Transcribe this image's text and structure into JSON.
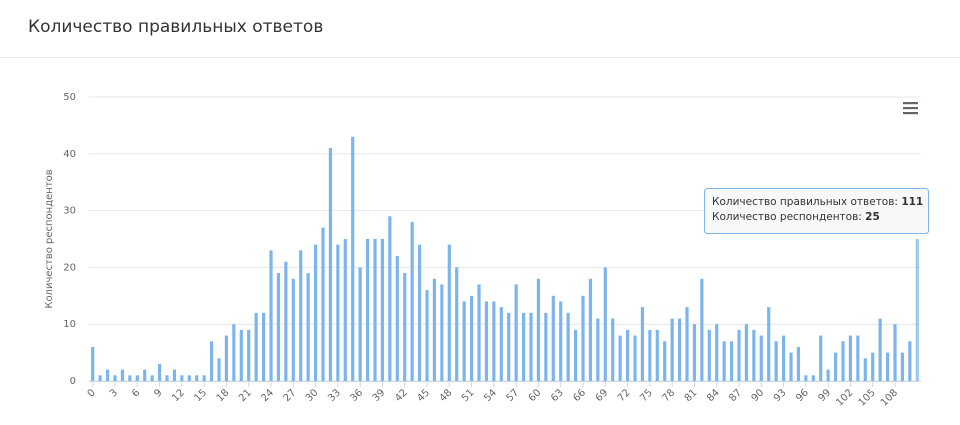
{
  "chart_data": {
    "type": "bar",
    "title": "Количество правильных ответов",
    "y_label": "Количество респондентов",
    "x": [
      0,
      1,
      2,
      3,
      4,
      5,
      6,
      7,
      8,
      9,
      10,
      11,
      12,
      13,
      14,
      15,
      16,
      17,
      18,
      19,
      20,
      21,
      22,
      23,
      24,
      25,
      26,
      27,
      28,
      29,
      30,
      31,
      32,
      33,
      34,
      35,
      36,
      37,
      38,
      39,
      40,
      41,
      42,
      43,
      44,
      45,
      46,
      47,
      48,
      49,
      50,
      51,
      52,
      53,
      54,
      55,
      56,
      57,
      58,
      59,
      60,
      61,
      62,
      63,
      64,
      65,
      66,
      67,
      68,
      69,
      70,
      71,
      72,
      73,
      74,
      75,
      76,
      77,
      78,
      79,
      80,
      81,
      82,
      83,
      84,
      85,
      86,
      87,
      88,
      89,
      90,
      91,
      92,
      93,
      94,
      95,
      96,
      97,
      98,
      99,
      100,
      101,
      102,
      103,
      104,
      105,
      106,
      107,
      108,
      109,
      110,
      111
    ],
    "values": [
      6,
      1,
      2,
      1,
      2,
      1,
      1,
      2,
      1,
      3,
      1,
      2,
      1,
      1,
      1,
      1,
      7,
      4,
      8,
      10,
      9,
      9,
      12,
      12,
      23,
      19,
      21,
      18,
      23,
      19,
      24,
      27,
      41,
      24,
      25,
      43,
      20,
      25,
      25,
      25,
      29,
      22,
      19,
      28,
      24,
      16,
      18,
      17,
      24,
      20,
      14,
      15,
      17,
      14,
      14,
      13,
      12,
      17,
      12,
      12,
      18,
      12,
      15,
      14,
      12,
      9,
      15,
      18,
      11,
      20,
      11,
      8,
      9,
      8,
      13,
      9,
      9,
      7,
      11,
      11,
      13,
      10,
      18,
      9,
      10,
      7,
      7,
      9,
      10,
      9,
      8,
      13,
      7,
      8,
      5,
      6,
      1,
      1,
      8,
      2,
      5,
      7,
      8,
      8,
      4,
      5,
      11,
      5,
      10,
      5,
      7,
      25
    ],
    "color": "#7cb5ec",
    "xlim": [
      -0.5,
      111.5
    ],
    "xticks": [
      0,
      3,
      6,
      9,
      12,
      15,
      18,
      21,
      24,
      27,
      30,
      33,
      36,
      39,
      42,
      45,
      48,
      51,
      54,
      57,
      60,
      63,
      66,
      69,
      72,
      75,
      78,
      81,
      84,
      87,
      90,
      93,
      96,
      99,
      102,
      105,
      108
    ],
    "ylim": [
      0,
      50
    ],
    "yticks": [
      0,
      10,
      20,
      30,
      40,
      50
    ],
    "grid": true,
    "tooltip": {
      "x_label": "Количество правильных ответов:",
      "y_label": "Количество респондентов:",
      "index": 111
    }
  }
}
